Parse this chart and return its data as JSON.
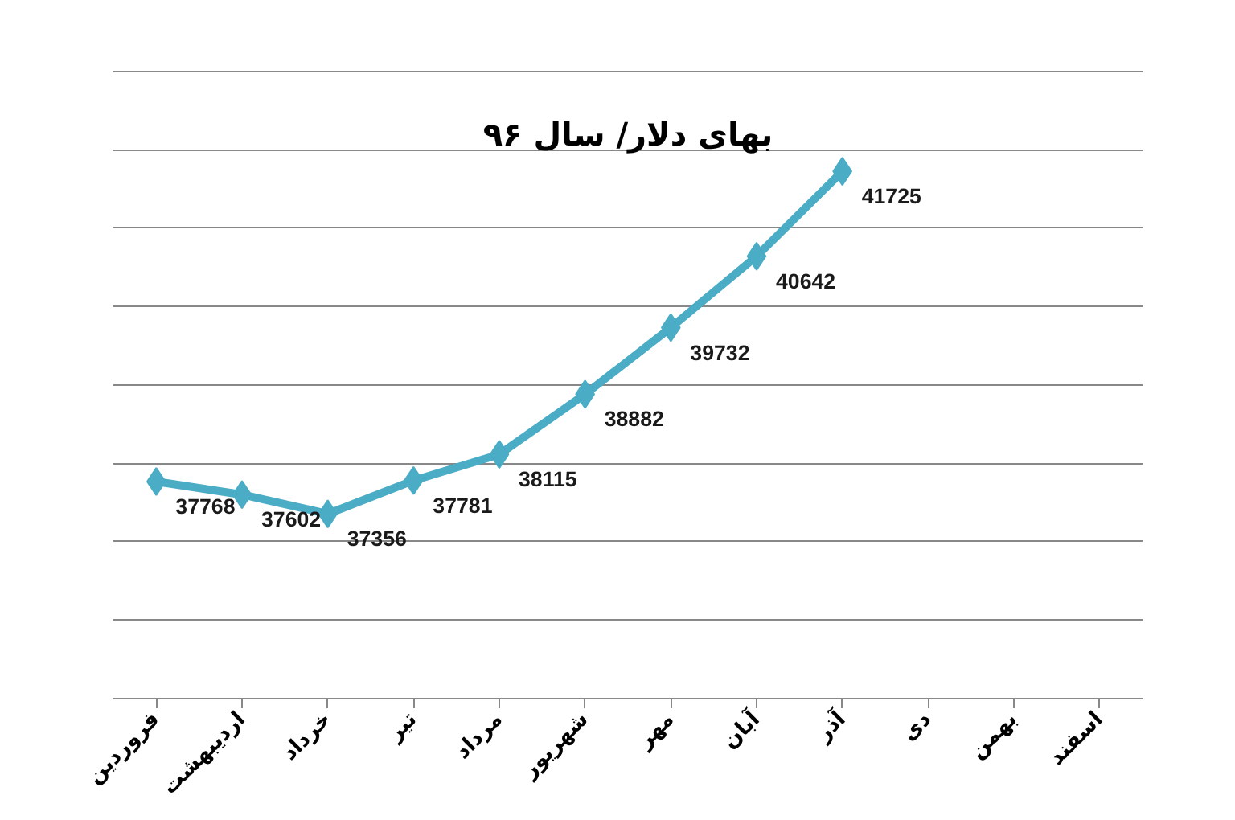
{
  "chart_data": {
    "type": "line",
    "title": "بهای دلار/ سال ۹۶",
    "categories": [
      "فروردین",
      "اردیبهشت",
      "خرداد",
      "تیر",
      "مرداد",
      "شهریور",
      "مهر",
      "آبان",
      "آذر",
      "دی",
      "بهمن",
      "اسفند"
    ],
    "series": [
      {
        "color": "#4bacc6",
        "values": [
          37768,
          37602,
          37356,
          37781,
          38115,
          38882,
          39732,
          40642,
          41725,
          null,
          null,
          null
        ]
      }
    ],
    "yticks": [
      {
        "value": 35000,
        "label": null
      },
      {
        "value": 36000,
        "label": null
      },
      {
        "value": 37000,
        "label": null
      },
      {
        "value": 38000,
        "label": null
      },
      {
        "value": 39000,
        "label": null
      },
      {
        "value": 40000,
        "label": null
      },
      {
        "value": 41000,
        "label": null
      },
      {
        "value": 42000,
        "label": null
      },
      {
        "value": 43000,
        "label": null
      }
    ],
    "tick_labels": "x",
    "grid": "y",
    "marker": "diamond",
    "line_style": "solid",
    "data_labels": true
  }
}
